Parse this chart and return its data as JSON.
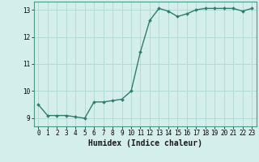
{
  "xlabel": "Humidex (Indice chaleur)",
  "ylabel": "",
  "x_values": [
    0,
    1,
    2,
    3,
    4,
    5,
    6,
    7,
    8,
    9,
    10,
    11,
    12,
    13,
    14,
    15,
    16,
    17,
    18,
    19,
    20,
    21,
    22,
    23
  ],
  "y_values": [
    9.5,
    9.1,
    9.1,
    9.1,
    9.05,
    9.0,
    9.6,
    9.6,
    9.65,
    9.7,
    10.0,
    11.45,
    12.6,
    13.05,
    12.95,
    12.75,
    12.85,
    13.0,
    13.05,
    13.05,
    13.05,
    13.05,
    12.95,
    13.05
  ],
  "line_color": "#2e7d6e",
  "marker": "D",
  "marker_size": 2.0,
  "background_color": "#d4eeeb",
  "grid_color": "#b0d8d4",
  "ylim": [
    8.7,
    13.3
  ],
  "xlim": [
    -0.5,
    23.5
  ],
  "yticks": [
    9,
    10,
    11,
    12,
    13
  ],
  "xticks": [
    0,
    1,
    2,
    3,
    4,
    5,
    6,
    7,
    8,
    9,
    10,
    11,
    12,
    13,
    14,
    15,
    16,
    17,
    18,
    19,
    20,
    21,
    22,
    23
  ],
  "tick_labelsize": 5.5,
  "xlabel_fontsize": 7.0,
  "linewidth": 1.0
}
